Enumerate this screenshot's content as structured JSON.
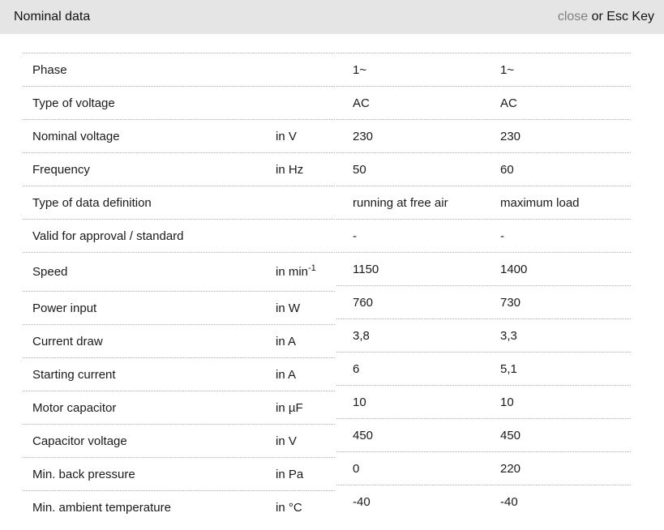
{
  "header": {
    "title": "Nominal data",
    "close_label": "close",
    "close_suffix": " or Esc Key"
  },
  "colors": {
    "header_bg": "#e5e5e5",
    "close_link_gray": "#7f7f7f",
    "text": "#1a1a1a",
    "row_divider": "#aaaaaa"
  },
  "table": {
    "rows": [
      {
        "label": "Phase",
        "unit": "",
        "value1": "1~",
        "value2": "1~"
      },
      {
        "label": "Type of voltage",
        "unit": "",
        "value1": "AC",
        "value2": "AC"
      },
      {
        "label": "Nominal voltage",
        "unit": "in V",
        "value1": "230",
        "value2": "230"
      },
      {
        "label": "Frequency",
        "unit": "in Hz",
        "value1": "50",
        "value2": "60"
      },
      {
        "label": "Type of data definition",
        "unit": "",
        "value1": "running at free air",
        "value2": "maximum load"
      },
      {
        "label": "Valid for approval / standard",
        "unit": "",
        "value1": "-",
        "value2": "-"
      },
      {
        "label": "Speed",
        "unit": "in min",
        "unit_sup": "-1",
        "value1": "1150",
        "value2": "1400"
      },
      {
        "label": "Power input",
        "unit": "in W",
        "value1": "760",
        "value2": "730"
      },
      {
        "label": "Current draw",
        "unit": "in A",
        "value1": "3,8",
        "value2": "3,3"
      },
      {
        "label": "Starting current",
        "unit": "in A",
        "value1": "6",
        "value2": "5,1"
      },
      {
        "label": "Motor capacitor",
        "unit": "in µF",
        "value1": "10",
        "value2": "10"
      },
      {
        "label": "Capacitor voltage",
        "unit": "in V",
        "value1": "450",
        "value2": "450"
      },
      {
        "label": "Min. back pressure",
        "unit": "in Pa",
        "value1": "0",
        "value2": "220"
      },
      {
        "label": "Min. ambient temperature",
        "unit": "in °C",
        "value1": "-40",
        "value2": "-40"
      }
    ]
  }
}
